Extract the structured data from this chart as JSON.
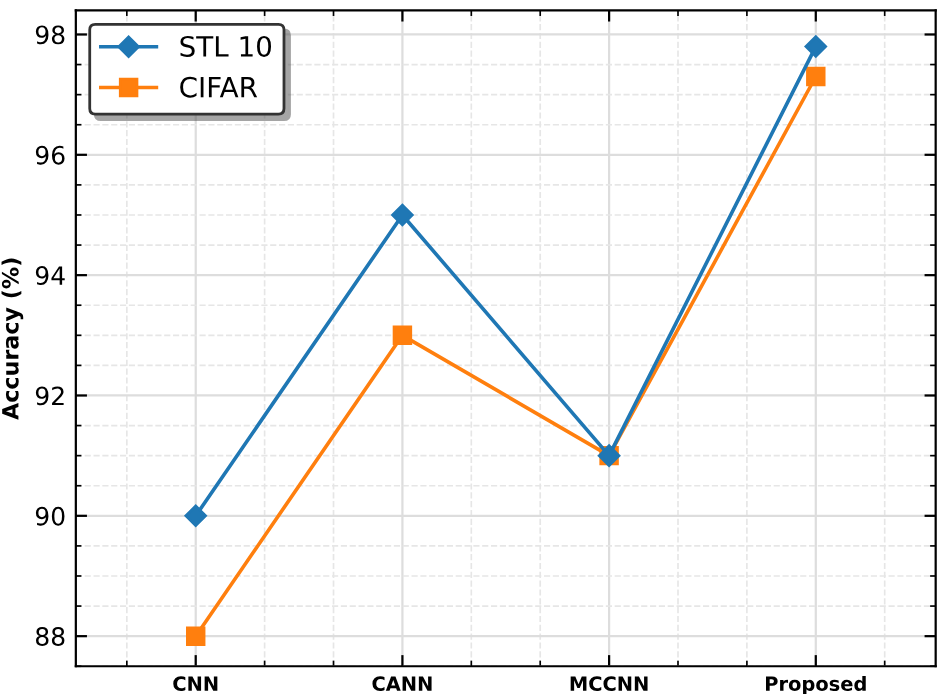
{
  "chart_data": {
    "type": "line",
    "ylabel": "Accuracy (%)",
    "categories": [
      "CNN",
      "CANN",
      "MCCNN",
      "Proposed"
    ],
    "series": [
      {
        "name": "STL 10",
        "color": "#1f77b4",
        "marker": "diamond",
        "values": [
          90,
          95,
          91,
          97.8
        ]
      },
      {
        "name": "CIFAR",
        "color": "#ff7f0e",
        "marker": "square",
        "values": [
          88,
          93,
          91,
          97.3
        ]
      }
    ],
    "ylim": [
      87.5,
      98.4
    ],
    "yticks": [
      88,
      90,
      92,
      94,
      96,
      98
    ],
    "grid": true,
    "legend": "top left",
    "line_style": "solid"
  }
}
